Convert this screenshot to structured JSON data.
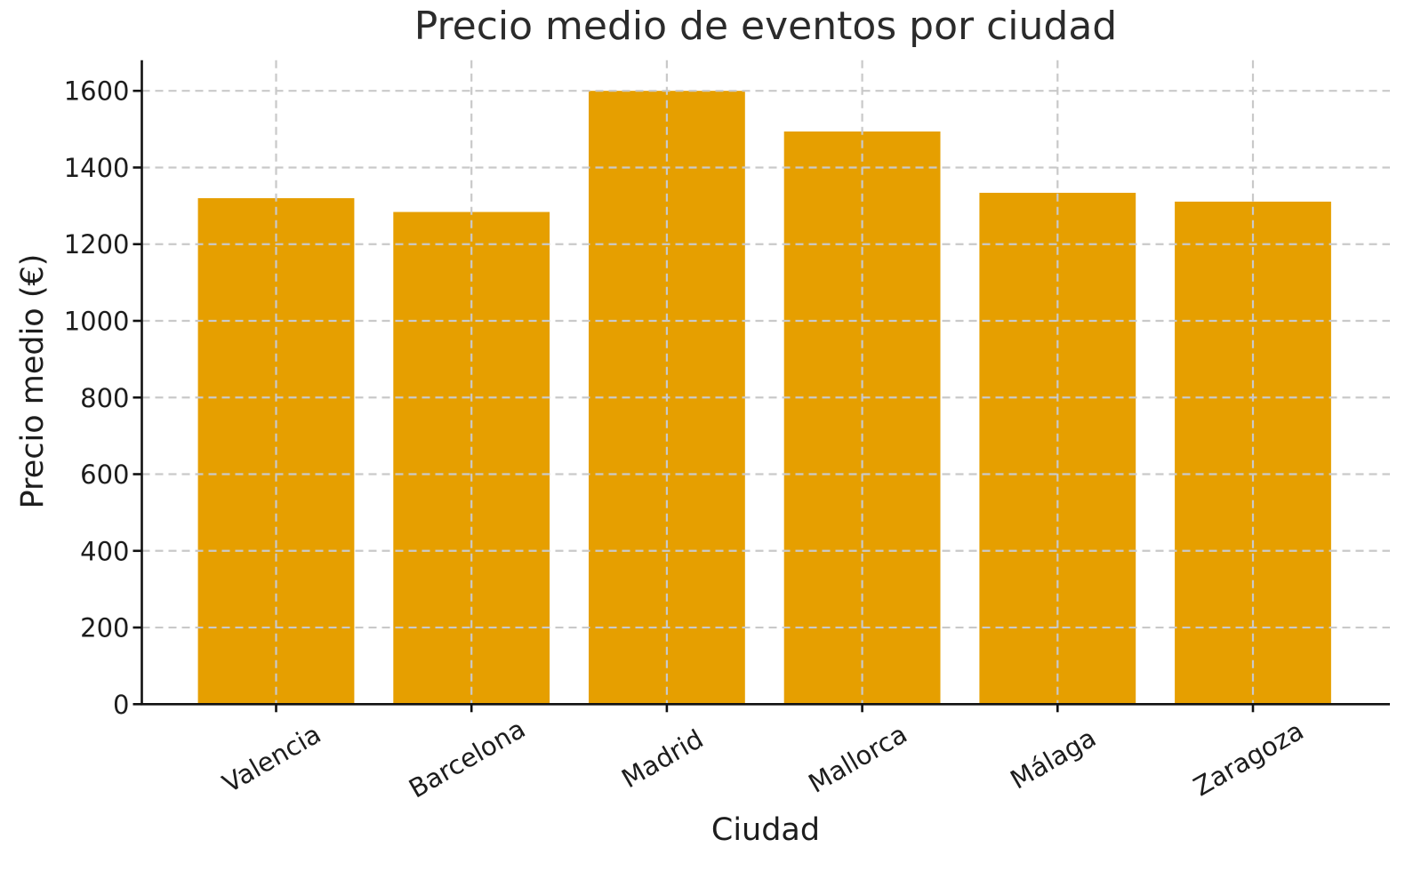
{
  "chart_data": {
    "type": "bar",
    "title": "Precio medio de eventos por ciudad",
    "xlabel": "Ciudad",
    "ylabel": "Precio medio (€)",
    "categories": [
      "Valencia",
      "Barcelona",
      "Madrid",
      "Mallorca",
      "Málaga",
      "Zaragoza"
    ],
    "values": [
      1320,
      1284,
      1600,
      1494,
      1334,
      1311
    ],
    "ylim": [
      0,
      1680
    ],
    "yticks": [
      0,
      200,
      400,
      600,
      800,
      1000,
      1200,
      1400,
      1600
    ],
    "xtick_rotation_deg": 30,
    "bar_color": "#E69F00",
    "grid": true,
    "grid_color": "#c9c9c9",
    "grid_style": "dashed",
    "axis_color": "#111111",
    "text_color": "#1d1d1d",
    "background": "#ffffff",
    "legend_position": "none"
  }
}
